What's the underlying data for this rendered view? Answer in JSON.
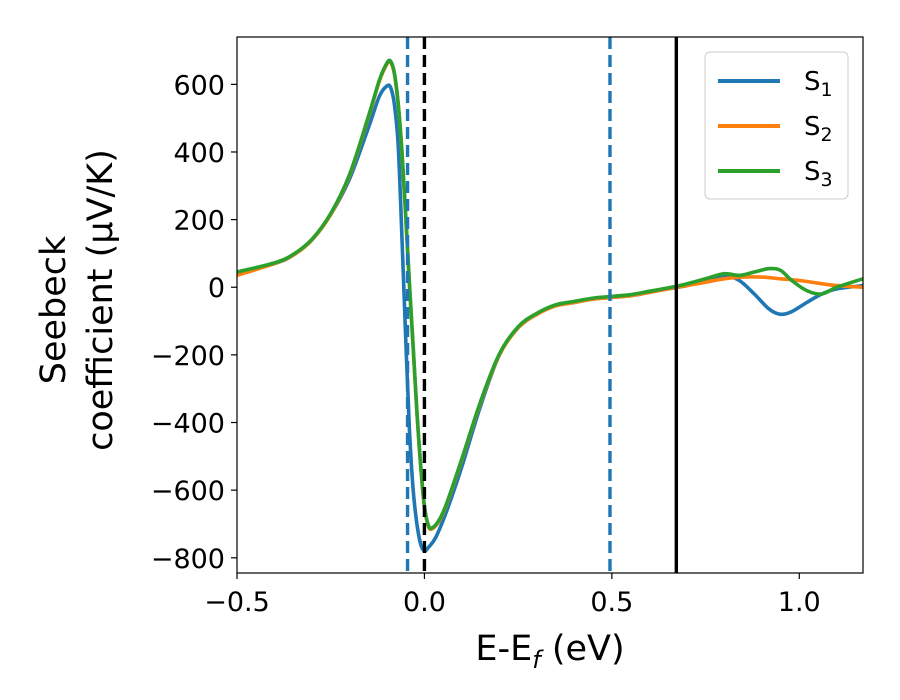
{
  "chart_data": {
    "type": "line",
    "xlabel": "E-E",
    "xlabel_sub": "f",
    "xlabel_unit": " (eV)",
    "ylabel_line1": "Seebeck",
    "ylabel_line2": "coefficient  (μV/K)",
    "xlim": [
      -0.5,
      1.17
    ],
    "ylim": [
      -845,
      740
    ],
    "xticks": [
      -0.5,
      0.0,
      0.5,
      1.0
    ],
    "xtick_labels": [
      "−0.5",
      "0.0",
      "0.5",
      "1.0"
    ],
    "yticks": [
      600,
      400,
      200,
      0,
      -200,
      -400,
      -600,
      -800
    ],
    "ytick_labels": [
      "600",
      "400",
      "200",
      "0",
      "−200",
      "−400",
      "−600",
      "−800"
    ],
    "legend_position": "top-right",
    "grid": false,
    "vertical_lines": [
      {
        "x": -0.045,
        "style": "dashed",
        "color": "#1f77b4"
      },
      {
        "x": 0.495,
        "style": "dashed",
        "color": "#1f77b4"
      },
      {
        "x": 0.0,
        "style": "dashed",
        "color": "#000000"
      },
      {
        "x": 0.672,
        "style": "solid",
        "color": "#000000"
      }
    ],
    "series": [
      {
        "name": "S",
        "name_sub": "1",
        "color": "#1f77b4",
        "x": [
          -0.5,
          -0.4,
          -0.35,
          -0.3,
          -0.25,
          -0.2,
          -0.15,
          -0.12,
          -0.1,
          -0.09,
          -0.08,
          -0.07,
          -0.06,
          -0.05,
          -0.04,
          -0.03,
          -0.02,
          -0.01,
          0.0,
          0.01,
          0.03,
          0.06,
          0.1,
          0.15,
          0.2,
          0.25,
          0.3,
          0.35,
          0.4,
          0.45,
          0.5,
          0.55,
          0.6,
          0.65,
          0.7,
          0.75,
          0.8,
          0.84,
          0.88,
          0.92,
          0.95,
          0.98,
          1.02,
          1.06,
          1.1,
          1.17
        ],
        "y": [
          40,
          70,
          95,
          140,
          215,
          320,
          470,
          565,
          595,
          590,
          540,
          420,
          150,
          -150,
          -420,
          -600,
          -700,
          -760,
          -780,
          -770,
          -740,
          -660,
          -530,
          -350,
          -200,
          -120,
          -80,
          -55,
          -45,
          -35,
          -30,
          -25,
          -15,
          -5,
          5,
          20,
          35,
          20,
          -20,
          -65,
          -80,
          -72,
          -45,
          -20,
          -5,
          5
        ]
      },
      {
        "name": "S",
        "name_sub": "2",
        "color": "#ff7f0e",
        "x": [
          -0.5,
          -0.4,
          -0.35,
          -0.3,
          -0.25,
          -0.2,
          -0.15,
          -0.12,
          -0.1,
          -0.09,
          -0.08,
          -0.07,
          -0.06,
          -0.05,
          -0.04,
          -0.03,
          -0.02,
          -0.01,
          0.0,
          0.01,
          0.02,
          0.04,
          0.06,
          0.1,
          0.15,
          0.2,
          0.25,
          0.3,
          0.35,
          0.4,
          0.45,
          0.5,
          0.55,
          0.6,
          0.65,
          0.7,
          0.75,
          0.8,
          0.85,
          0.9,
          0.95,
          1.0,
          1.05,
          1.1,
          1.17
        ],
        "y": [
          35,
          70,
          95,
          140,
          215,
          330,
          500,
          610,
          660,
          665,
          630,
          540,
          400,
          210,
          10,
          -180,
          -370,
          -530,
          -650,
          -705,
          -715,
          -690,
          -640,
          -510,
          -340,
          -200,
          -120,
          -80,
          -55,
          -45,
          -35,
          -30,
          -25,
          -15,
          -5,
          5,
          15,
          25,
          30,
          30,
          25,
          20,
          12,
          5,
          0
        ]
      },
      {
        "name": "S",
        "name_sub": "3",
        "color": "#2ca02c",
        "x": [
          -0.5,
          -0.4,
          -0.35,
          -0.3,
          -0.25,
          -0.2,
          -0.15,
          -0.12,
          -0.1,
          -0.09,
          -0.08,
          -0.07,
          -0.06,
          -0.05,
          -0.04,
          -0.03,
          -0.02,
          -0.01,
          0.0,
          0.01,
          0.02,
          0.04,
          0.06,
          0.1,
          0.15,
          0.2,
          0.25,
          0.3,
          0.35,
          0.4,
          0.45,
          0.5,
          0.55,
          0.6,
          0.65,
          0.7,
          0.75,
          0.8,
          0.84,
          0.88,
          0.92,
          0.95,
          0.98,
          1.02,
          1.06,
          1.1,
          1.17
        ],
        "y": [
          45,
          72,
          97,
          142,
          218,
          333,
          503,
          613,
          663,
          668,
          633,
          543,
          403,
          213,
          13,
          -177,
          -367,
          -527,
          -647,
          -702,
          -712,
          -687,
          -637,
          -507,
          -337,
          -197,
          -117,
          -77,
          -52,
          -42,
          -32,
          -27,
          -22,
          -12,
          -2,
          10,
          25,
          40,
          35,
          45,
          55,
          50,
          20,
          -10,
          -20,
          0,
          25
        ]
      }
    ]
  }
}
